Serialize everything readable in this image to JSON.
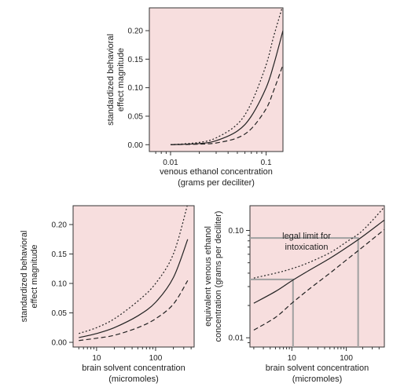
{
  "chart_data": [
    {
      "id": "top",
      "type": "line",
      "x_scale": "log",
      "xlim": [
        0.006,
        0.15
      ],
      "ylim": [
        -0.012,
        0.24
      ],
      "x_ticks": [
        {
          "v": 0.01,
          "label": "0.01"
        },
        {
          "v": 0.1,
          "label": "0.1"
        }
      ],
      "y_ticks": [
        {
          "v": 0.0,
          "label": "0.00"
        },
        {
          "v": 0.05,
          "label": "0.05"
        },
        {
          "v": 0.1,
          "label": "0.10"
        },
        {
          "v": 0.15,
          "label": "0.15"
        },
        {
          "v": 0.2,
          "label": "0.20"
        }
      ],
      "xlabel": [
        "venous ethanol concentration",
        "(grams per deciliter)"
      ],
      "ylabel": [
        "standardized behavioral",
        "effect magnitude"
      ],
      "series": [
        {
          "style": "dotted",
          "x": [
            0.01,
            0.02,
            0.03,
            0.05,
            0.07,
            0.1,
            0.12,
            0.15
          ],
          "y": [
            0.0,
            0.004,
            0.012,
            0.036,
            0.073,
            0.14,
            0.19,
            0.245
          ]
        },
        {
          "style": "solid",
          "x": [
            0.01,
            0.02,
            0.03,
            0.05,
            0.07,
            0.1,
            0.12,
            0.15
          ],
          "y": [
            0.0,
            0.002,
            0.007,
            0.024,
            0.05,
            0.1,
            0.14,
            0.2
          ]
        },
        {
          "style": "dashed",
          "x": [
            0.01,
            0.02,
            0.03,
            0.05,
            0.07,
            0.1,
            0.12,
            0.15
          ],
          "y": [
            0.0,
            0.001,
            0.003,
            0.012,
            0.028,
            0.063,
            0.095,
            0.14
          ]
        }
      ]
    },
    {
      "id": "bottom-left",
      "type": "line",
      "x_scale": "log",
      "xlim": [
        4,
        450
      ],
      "ylim": [
        -0.008,
        0.232
      ],
      "x_ticks": [
        {
          "v": 10,
          "label": "10"
        },
        {
          "v": 100,
          "label": "100"
        }
      ],
      "y_ticks": [
        {
          "v": 0.0,
          "label": "0.00"
        },
        {
          "v": 0.05,
          "label": "0.05"
        },
        {
          "v": 0.1,
          "label": "0.10"
        },
        {
          "v": 0.15,
          "label": "0.15"
        },
        {
          "v": 0.2,
          "label": "0.20"
        }
      ],
      "xlabel": [
        "brain solvent concentration",
        "(micromoles)"
      ],
      "ylabel": [
        "standardized behavioral",
        "effect magnitude"
      ],
      "series": [
        {
          "style": "dotted",
          "x": [
            5,
            10,
            20,
            50,
            100,
            200,
            350
          ],
          "y": [
            0.015,
            0.025,
            0.04,
            0.07,
            0.1,
            0.15,
            0.235
          ]
        },
        {
          "style": "solid",
          "x": [
            5,
            10,
            20,
            50,
            100,
            200,
            350
          ],
          "y": [
            0.008,
            0.015,
            0.025,
            0.045,
            0.068,
            0.11,
            0.175
          ]
        },
        {
          "style": "dashed",
          "x": [
            5,
            10,
            20,
            50,
            100,
            200,
            350
          ],
          "y": [
            0.003,
            0.007,
            0.012,
            0.025,
            0.04,
            0.065,
            0.105
          ]
        }
      ]
    },
    {
      "id": "bottom-right",
      "type": "line",
      "x_scale": "log",
      "y_scale": "log",
      "xlim": [
        1.7,
        500
      ],
      "ylim": [
        0.0082,
        0.17
      ],
      "x_ticks": [
        {
          "v": 10,
          "label": "10"
        },
        {
          "v": 100,
          "label": "100"
        }
      ],
      "y_ticks": [
        {
          "v": 0.01,
          "label": "0.01"
        },
        {
          "v": 0.1,
          "label": "0.10"
        }
      ],
      "xlabel": [
        "brain solvent concentration",
        "(micromoles)"
      ],
      "ylabel": [
        "equivalent venous ethanol",
        "concentration (grams per deciliter)"
      ],
      "annotation": [
        "legal limit for",
        "intoxication"
      ],
      "guides": [
        {
          "x": 10.5,
          "y": 0.035
        },
        {
          "x": 165,
          "y": 0.085
        }
      ],
      "series": [
        {
          "style": "dotted",
          "x": [
            2,
            5,
            10,
            20,
            50,
            100,
            200,
            500
          ],
          "y": [
            0.036,
            0.04,
            0.044,
            0.05,
            0.062,
            0.078,
            0.1,
            0.165
          ]
        },
        {
          "style": "solid",
          "x": [
            2,
            5,
            10,
            20,
            50,
            100,
            200,
            500
          ],
          "y": [
            0.021,
            0.027,
            0.034,
            0.042,
            0.055,
            0.069,
            0.088,
            0.125
          ]
        },
        {
          "style": "dashed",
          "x": [
            2,
            5,
            10,
            20,
            50,
            100,
            200,
            500
          ],
          "y": [
            0.0118,
            0.0155,
            0.021,
            0.028,
            0.04,
            0.053,
            0.07,
            0.102
          ]
        }
      ]
    }
  ]
}
